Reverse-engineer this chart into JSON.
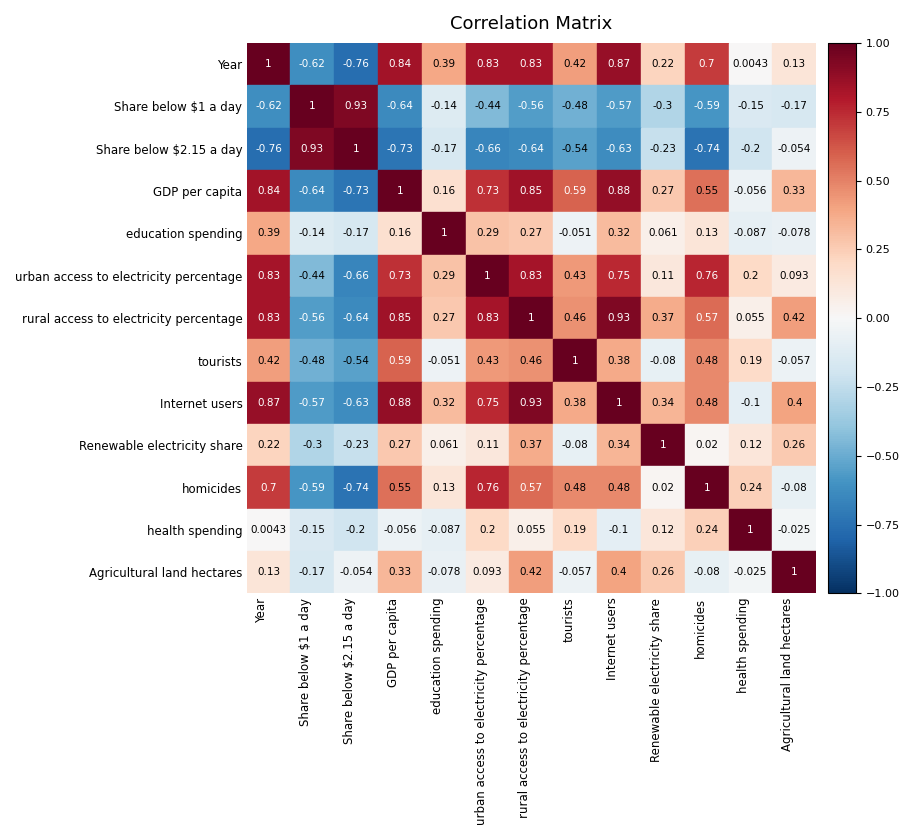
{
  "labels": [
    "Year",
    "Share below $1 a day",
    "Share below $2.15 a day",
    "GDP per capita",
    "education spending",
    "urban access to electricity percentage",
    "rural access to electricity percentage",
    "tourists",
    "Internet users",
    "Renewable electricity share",
    "homicides",
    "health spending",
    "Agricultural land hectares"
  ],
  "matrix": [
    [
      1,
      -0.62,
      -0.76,
      0.84,
      0.39,
      0.83,
      0.83,
      0.42,
      0.87,
      0.22,
      0.7,
      0.0043,
      0.13
    ],
    [
      -0.62,
      1,
      0.93,
      -0.64,
      -0.14,
      -0.44,
      -0.56,
      -0.48,
      -0.57,
      -0.3,
      -0.59,
      -0.15,
      -0.17
    ],
    [
      -0.76,
      0.93,
      1,
      -0.73,
      -0.17,
      -0.66,
      -0.64,
      -0.54,
      -0.63,
      -0.23,
      -0.74,
      -0.2,
      -0.054
    ],
    [
      0.84,
      -0.64,
      -0.73,
      1,
      0.16,
      0.73,
      0.85,
      0.59,
      0.88,
      0.27,
      0.55,
      -0.056,
      0.33
    ],
    [
      0.39,
      -0.14,
      -0.17,
      0.16,
      1,
      0.29,
      0.27,
      -0.051,
      0.32,
      0.061,
      0.13,
      -0.087,
      -0.078
    ],
    [
      0.83,
      -0.44,
      -0.66,
      0.73,
      0.29,
      1,
      0.83,
      0.43,
      0.75,
      0.11,
      0.76,
      0.2,
      0.093
    ],
    [
      0.83,
      -0.56,
      -0.64,
      0.85,
      0.27,
      0.83,
      1,
      0.46,
      0.93,
      0.37,
      0.57,
      0.055,
      0.42
    ],
    [
      0.42,
      -0.48,
      -0.54,
      0.59,
      -0.051,
      0.43,
      0.46,
      1,
      0.38,
      -0.08,
      0.48,
      0.19,
      -0.057
    ],
    [
      0.87,
      -0.57,
      -0.63,
      0.88,
      0.32,
      0.75,
      0.93,
      0.38,
      1,
      0.34,
      0.48,
      -0.1,
      0.4
    ],
    [
      0.22,
      -0.3,
      -0.23,
      0.27,
      0.061,
      0.11,
      0.37,
      -0.08,
      0.34,
      1,
      0.02,
      0.12,
      0.26
    ],
    [
      0.7,
      -0.59,
      -0.74,
      0.55,
      0.13,
      0.76,
      0.57,
      0.48,
      0.48,
      0.02,
      1,
      0.24,
      -0.08
    ],
    [
      0.0043,
      -0.15,
      -0.2,
      -0.056,
      -0.087,
      0.2,
      0.055,
      0.19,
      -0.1,
      0.12,
      0.24,
      1,
      -0.025
    ],
    [
      0.13,
      -0.17,
      -0.054,
      0.33,
      -0.078,
      0.093,
      0.42,
      -0.057,
      0.4,
      0.26,
      -0.08,
      -0.025,
      1
    ]
  ],
  "title": "Correlation Matrix",
  "title_fontsize": 13,
  "tick_fontsize": 8.5,
  "annot_fontsize": 7.5,
  "colorbar_tick_fontsize": 8,
  "vmin": -1,
  "vmax": 1,
  "cmap": "RdBu_r",
  "figsize": [
    9.15,
    8.4
  ],
  "dpi": 100,
  "background_color": "#ffffff"
}
